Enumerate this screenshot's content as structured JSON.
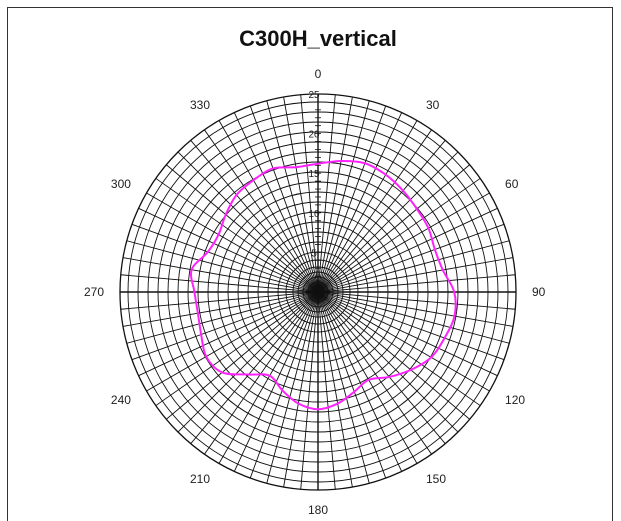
{
  "chart_data": {
    "type": "polar-line",
    "title": "C300H_vertical",
    "r_range": [
      0,
      25
    ],
    "radial_ticks": [
      5,
      10,
      15,
      20,
      25
    ],
    "angle_labels": [
      {
        "deg": 0,
        "text": "0"
      },
      {
        "deg": 30,
        "text": "30"
      },
      {
        "deg": 60,
        "text": "60"
      },
      {
        "deg": 90,
        "text": "90"
      },
      {
        "deg": 120,
        "text": "120"
      },
      {
        "deg": 150,
        "text": "150"
      },
      {
        "deg": 180,
        "text": "180"
      },
      {
        "deg": 210,
        "text": "210"
      },
      {
        "deg": 240,
        "text": "240"
      },
      {
        "deg": 270,
        "text": "270"
      },
      {
        "deg": 300,
        "text": "300"
      },
      {
        "deg": 330,
        "text": "330"
      }
    ],
    "angle_direction": "clockwise",
    "zero_at": "top",
    "grid": true,
    "series": [
      {
        "color": "#ff22ff",
        "points": [
          {
            "deg": 0,
            "r": 16.2
          },
          {
            "deg": 10,
            "r": 16.8
          },
          {
            "deg": 20,
            "r": 17.3
          },
          {
            "deg": 30,
            "r": 17.1
          },
          {
            "deg": 40,
            "r": 16.7
          },
          {
            "deg": 50,
            "r": 16.3
          },
          {
            "deg": 60,
            "r": 16.1
          },
          {
            "deg": 70,
            "r": 15.7
          },
          {
            "deg": 80,
            "r": 16.0
          },
          {
            "deg": 90,
            "r": 17.2
          },
          {
            "deg": 100,
            "r": 17.5
          },
          {
            "deg": 110,
            "r": 17.0
          },
          {
            "deg": 120,
            "r": 16.5
          },
          {
            "deg": 130,
            "r": 15.3
          },
          {
            "deg": 140,
            "r": 14.0
          },
          {
            "deg": 150,
            "r": 12.8
          },
          {
            "deg": 160,
            "r": 13.4
          },
          {
            "deg": 170,
            "r": 14.3
          },
          {
            "deg": 180,
            "r": 14.8
          },
          {
            "deg": 190,
            "r": 14.3
          },
          {
            "deg": 200,
            "r": 13.2
          },
          {
            "deg": 210,
            "r": 12.2
          },
          {
            "deg": 220,
            "r": 13.6
          },
          {
            "deg": 230,
            "r": 15.8
          },
          {
            "deg": 240,
            "r": 16.3
          },
          {
            "deg": 250,
            "r": 15.7
          },
          {
            "deg": 260,
            "r": 15.4
          },
          {
            "deg": 270,
            "r": 15.6
          },
          {
            "deg": 280,
            "r": 16.2
          },
          {
            "deg": 290,
            "r": 14.8
          },
          {
            "deg": 300,
            "r": 14.5
          },
          {
            "deg": 310,
            "r": 15.2
          },
          {
            "deg": 320,
            "r": 16.0
          },
          {
            "deg": 330,
            "r": 16.3
          },
          {
            "deg": 340,
            "r": 16.6
          },
          {
            "deg": 350,
            "r": 16.0
          }
        ]
      }
    ]
  }
}
